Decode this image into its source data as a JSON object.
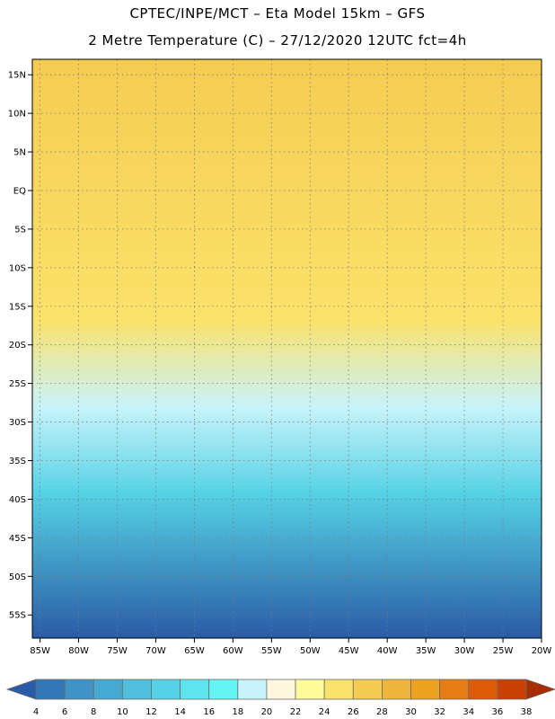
{
  "title": {
    "line1": "CPTEC/INPE/MCT –  Eta Model 15km – GFS",
    "line2": "2 Metre Temperature (C) – 27/12/2020 12UTC fct=4h"
  },
  "map": {
    "lon_range": [
      -86,
      -20
    ],
    "lat_range": [
      -58,
      17
    ],
    "lat_labels": [
      {
        "lat": 15,
        "text": "15N"
      },
      {
        "lat": 10,
        "text": "10N"
      },
      {
        "lat": 5,
        "text": "5N"
      },
      {
        "lat": 0,
        "text": "EQ"
      },
      {
        "lat": -5,
        "text": "5S"
      },
      {
        "lat": -10,
        "text": "10S"
      },
      {
        "lat": -15,
        "text": "15S"
      },
      {
        "lat": -20,
        "text": "20S"
      },
      {
        "lat": -25,
        "text": "25S"
      },
      {
        "lat": -30,
        "text": "30S"
      },
      {
        "lat": -35,
        "text": "35S"
      },
      {
        "lat": -40,
        "text": "40S"
      },
      {
        "lat": -45,
        "text": "45S"
      },
      {
        "lat": -50,
        "text": "50S"
      },
      {
        "lat": -55,
        "text": "55S"
      }
    ],
    "lon_labels": [
      {
        "lon": -85,
        "text": "85W"
      },
      {
        "lon": -80,
        "text": "80W"
      },
      {
        "lon": -75,
        "text": "75W"
      },
      {
        "lon": -70,
        "text": "70W"
      },
      {
        "lon": -65,
        "text": "65W"
      },
      {
        "lon": -60,
        "text": "60W"
      },
      {
        "lon": -55,
        "text": "55W"
      },
      {
        "lon": -50,
        "text": "50W"
      },
      {
        "lon": -45,
        "text": "45W"
      },
      {
        "lon": -40,
        "text": "40W"
      },
      {
        "lon": -35,
        "text": "35W"
      },
      {
        "lon": -30,
        "text": "30W"
      },
      {
        "lon": -25,
        "text": "25W"
      },
      {
        "lon": -20,
        "text": "20W"
      }
    ]
  },
  "legend": {
    "values": [
      "4",
      "6",
      "8",
      "10",
      "12",
      "14",
      "16",
      "18",
      "20",
      "22",
      "24",
      "26",
      "28",
      "30",
      "32",
      "34",
      "36",
      "38"
    ],
    "colors": [
      "#2a5ba6",
      "#3377b9",
      "#3f93c5",
      "#45a9d2",
      "#4fbfdc",
      "#55d2e5",
      "#5ee4ec",
      "#66f5f5",
      "#c9f3fa",
      "#fff6df",
      "#fffa9a",
      "#fbe26a",
      "#f5cc52",
      "#efb63e",
      "#eda321",
      "#e57c15",
      "#dc5a08",
      "#c84004",
      "#a72d02"
    ]
  }
}
